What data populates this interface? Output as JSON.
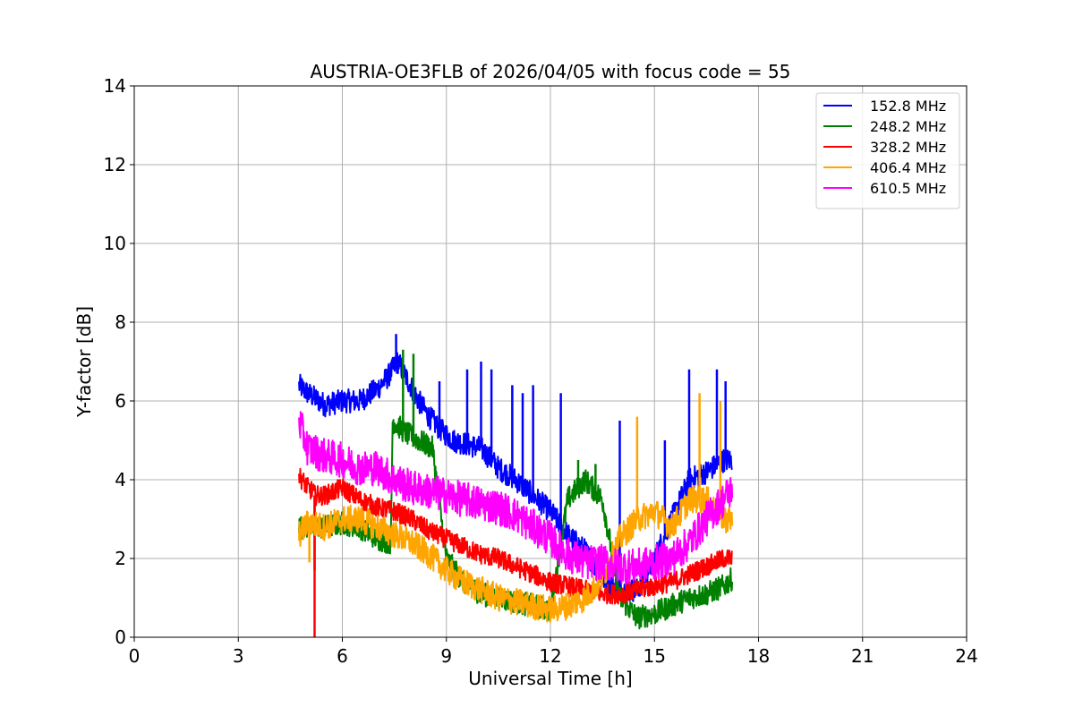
{
  "chart_data": {
    "type": "line",
    "title": "AUSTRIA-OE3FLB of 2026/04/05 with focus code = 55",
    "xlabel": "Universal Time [h]",
    "ylabel": "Y-factor [dB]",
    "xlim": [
      0,
      24
    ],
    "ylim": [
      0,
      14
    ],
    "xticks": [
      0,
      3,
      6,
      9,
      12,
      15,
      18,
      21,
      24
    ],
    "yticks": [
      0,
      2,
      4,
      6,
      8,
      10,
      12,
      14
    ],
    "grid": true,
    "legend_position": "top-right",
    "series": [
      {
        "name": "152.8 MHz",
        "color": "#0000ff",
        "noise": 0.3,
        "x": [
          4.75,
          5.0,
          5.5,
          6.0,
          6.5,
          7.0,
          7.3,
          7.6,
          7.9,
          8.2,
          8.5,
          8.8,
          9.2,
          9.6,
          10.0,
          10.5,
          11.0,
          11.5,
          12.0,
          12.5,
          13.0,
          13.5,
          14.0,
          14.5,
          15.0,
          15.5,
          16.0,
          16.5,
          17.0,
          17.25
        ],
        "y": [
          6.4,
          6.2,
          5.9,
          6.0,
          6.0,
          6.3,
          6.6,
          7.0,
          6.5,
          6.0,
          5.6,
          5.3,
          5.0,
          4.9,
          4.8,
          4.3,
          4.0,
          3.6,
          3.2,
          2.6,
          2.2,
          1.5,
          1.2,
          1.2,
          2.0,
          3.0,
          4.0,
          4.2,
          4.5,
          4.5
        ],
        "spikes": [
          [
            7.55,
            7.7
          ],
          [
            8.8,
            6.5
          ],
          [
            9.6,
            6.8
          ],
          [
            10.0,
            7.0
          ],
          [
            10.3,
            6.8
          ],
          [
            10.9,
            6.4
          ],
          [
            11.2,
            6.2
          ],
          [
            11.5,
            6.4
          ],
          [
            12.3,
            6.2
          ],
          [
            14.0,
            5.5
          ],
          [
            15.3,
            5.0
          ],
          [
            16.0,
            6.8
          ],
          [
            16.8,
            6.8
          ],
          [
            17.05,
            6.5
          ]
        ]
      },
      {
        "name": "248.2 MHz",
        "color": "#008000",
        "noise": 0.3,
        "x": [
          4.75,
          5.0,
          5.5,
          6.0,
          6.5,
          7.0,
          7.4,
          7.45,
          7.8,
          8.2,
          8.6,
          9.0,
          9.5,
          10.0,
          10.5,
          11.0,
          11.5,
          12.0,
          12.5,
          13.0,
          13.5,
          14.0,
          14.5,
          15.0,
          15.5,
          16.0,
          16.5,
          17.0,
          17.25
        ],
        "y": [
          2.8,
          2.8,
          2.8,
          2.9,
          2.8,
          2.5,
          2.4,
          5.5,
          5.2,
          5.0,
          4.8,
          2.0,
          1.4,
          1.1,
          1.0,
          0.9,
          0.8,
          0.7,
          3.5,
          4.0,
          3.5,
          1.0,
          0.5,
          0.6,
          0.8,
          1.0,
          1.1,
          1.3,
          1.5
        ],
        "spikes": [
          [
            7.75,
            7.3
          ],
          [
            8.05,
            7.2
          ],
          [
            12.8,
            4.5
          ],
          [
            13.3,
            4.4
          ]
        ]
      },
      {
        "name": "328.2 MHz",
        "color": "#ff0000",
        "noise": 0.25,
        "x": [
          4.75,
          5.0,
          5.15,
          5.2,
          5.5,
          6.0,
          6.5,
          7.0,
          7.5,
          8.0,
          8.5,
          9.0,
          9.5,
          10.0,
          10.5,
          11.0,
          11.5,
          12.0,
          12.5,
          13.0,
          13.5,
          14.0,
          14.5,
          15.0,
          15.5,
          16.0,
          16.5,
          17.0,
          17.25
        ],
        "y": [
          4.1,
          3.8,
          3.7,
          3.6,
          3.6,
          3.8,
          3.5,
          3.3,
          3.2,
          3.0,
          2.7,
          2.5,
          2.3,
          2.1,
          2.0,
          1.8,
          1.6,
          1.4,
          1.3,
          1.2,
          1.1,
          1.1,
          1.2,
          1.3,
          1.4,
          1.6,
          1.8,
          2.0,
          2.0
        ],
        "spikes": [
          [
            5.2,
            0.0
          ],
          [
            5.2,
            1.7
          ]
        ]
      },
      {
        "name": "406.4 MHz",
        "color": "#ffa500",
        "noise": 0.35,
        "x": [
          4.75,
          5.0,
          5.5,
          6.0,
          6.5,
          7.0,
          7.5,
          8.0,
          8.5,
          9.0,
          9.5,
          10.0,
          10.5,
          11.0,
          11.5,
          12.0,
          12.5,
          13.0,
          13.5,
          14.0,
          14.5,
          15.0,
          15.5,
          16.0,
          16.5,
          17.0,
          17.25
        ],
        "y": [
          2.6,
          2.9,
          2.8,
          3.0,
          3.0,
          2.8,
          2.6,
          2.4,
          2.1,
          1.7,
          1.4,
          1.2,
          1.0,
          0.9,
          0.8,
          0.7,
          0.8,
          1.0,
          1.5,
          2.5,
          3.0,
          3.2,
          2.8,
          3.5,
          3.5,
          3.0,
          3.0
        ],
        "spikes": [
          [
            5.05,
            1.9
          ],
          [
            14.5,
            5.6
          ],
          [
            16.3,
            6.2
          ],
          [
            16.9,
            6.0
          ]
        ]
      },
      {
        "name": "610.5 MHz",
        "color": "#ff00ff",
        "noise": 0.45,
        "x": [
          4.75,
          5.0,
          5.5,
          6.0,
          6.5,
          7.0,
          7.5,
          8.0,
          8.5,
          9.0,
          9.5,
          10.0,
          10.5,
          11.0,
          11.5,
          12.0,
          12.5,
          13.0,
          13.5,
          14.0,
          14.5,
          15.0,
          15.5,
          16.0,
          16.5,
          17.0,
          17.25
        ],
        "y": [
          5.5,
          4.8,
          4.6,
          4.5,
          4.3,
          4.3,
          4.0,
          3.8,
          3.7,
          3.6,
          3.5,
          3.4,
          3.3,
          3.1,
          2.8,
          2.5,
          2.1,
          1.9,
          1.9,
          1.8,
          1.8,
          1.9,
          2.0,
          2.4,
          3.0,
          3.5,
          3.8
        ],
        "spikes": []
      }
    ]
  }
}
